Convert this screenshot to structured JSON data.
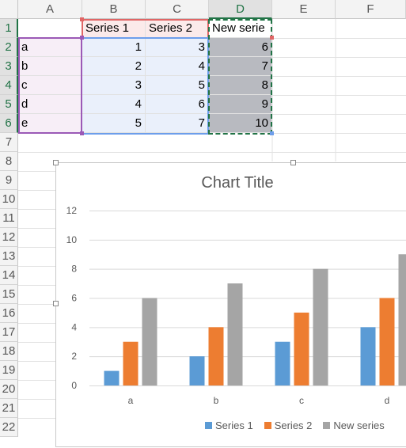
{
  "spreadsheet": {
    "columns": [
      "A",
      "B",
      "C",
      "D",
      "E",
      "F"
    ],
    "rows": [
      "1",
      "2",
      "3",
      "4",
      "5",
      "6",
      "7",
      "8",
      "9",
      "10",
      "11",
      "12",
      "13",
      "14",
      "15",
      "16",
      "17",
      "18",
      "19",
      "20",
      "21",
      "22"
    ],
    "headers": {
      "B1": "Series 1",
      "C1": "Series 2",
      "D1": "New serie"
    },
    "data_rows": [
      {
        "a": "a",
        "b": "1",
        "c": "3",
        "d": "6"
      },
      {
        "a": "b",
        "b": "2",
        "c": "4",
        "d": "7"
      },
      {
        "a": "c",
        "b": "3",
        "c": "5",
        "d": "8"
      },
      {
        "a": "d",
        "b": "4",
        "c": "6",
        "d": "9"
      },
      {
        "a": "e",
        "b": "5",
        "c": "7",
        "d": "10"
      }
    ]
  },
  "colors": {
    "series1": "#5b9bd5",
    "series2": "#ed7d31",
    "series3": "#a5a5a5",
    "selection": "#217346"
  },
  "chart_data": {
    "type": "bar",
    "title": "Chart Title",
    "categories": [
      "a",
      "b",
      "c",
      "d"
    ],
    "series": [
      {
        "name": "Series 1",
        "values": [
          1,
          2,
          3,
          4
        ]
      },
      {
        "name": "Series 2",
        "values": [
          3,
          4,
          5,
          6
        ]
      },
      {
        "name": "New series",
        "values": [
          6,
          7,
          8,
          9
        ]
      }
    ],
    "ylim": [
      0,
      12
    ],
    "yticks": [
      "0",
      "2",
      "4",
      "6",
      "8",
      "10",
      "12"
    ],
    "grid": true,
    "legend": "bottom"
  }
}
